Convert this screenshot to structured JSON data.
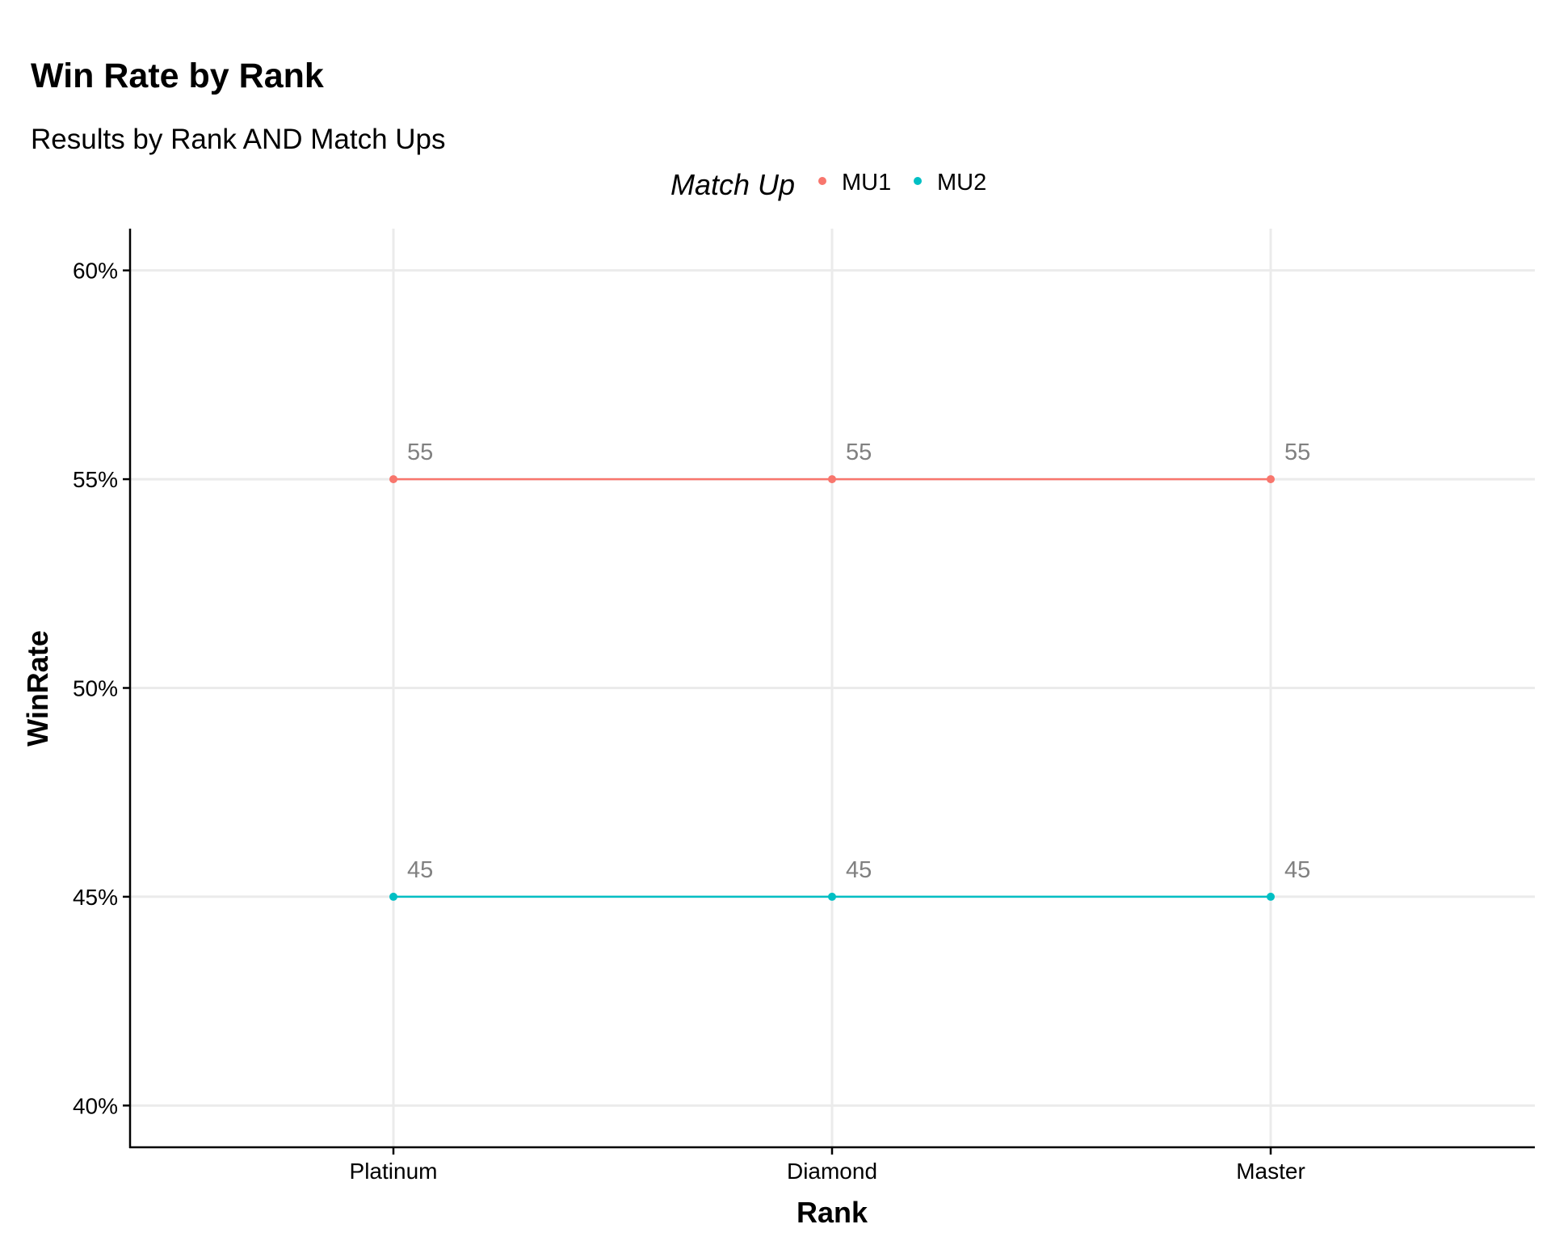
{
  "chart_data": {
    "type": "line",
    "title": "Win Rate by Rank",
    "subtitle": "Results by Rank AND Match Ups",
    "xlabel": "Rank",
    "ylabel": "WinRate",
    "categories": [
      "Platinum",
      "Diamond",
      "Master"
    ],
    "ylim": [
      0.39,
      0.61
    ],
    "yticks": [
      0.4,
      0.45,
      0.5,
      0.55,
      0.6
    ],
    "ytick_labels": [
      "40%",
      "45%",
      "50%",
      "55%",
      "60%"
    ],
    "grid": true,
    "legend": {
      "title": "Match Up",
      "position": "top",
      "entries": [
        "MU1",
        "MU2"
      ]
    },
    "series": [
      {
        "name": "MU1",
        "color": "#F8766D",
        "values": [
          0.55,
          0.55,
          0.55
        ],
        "labels": [
          "55",
          "55",
          "55"
        ]
      },
      {
        "name": "MU2",
        "color": "#00BFC4",
        "values": [
          0.45,
          0.45,
          0.45
        ],
        "labels": [
          "45",
          "45",
          "45"
        ]
      }
    ]
  }
}
